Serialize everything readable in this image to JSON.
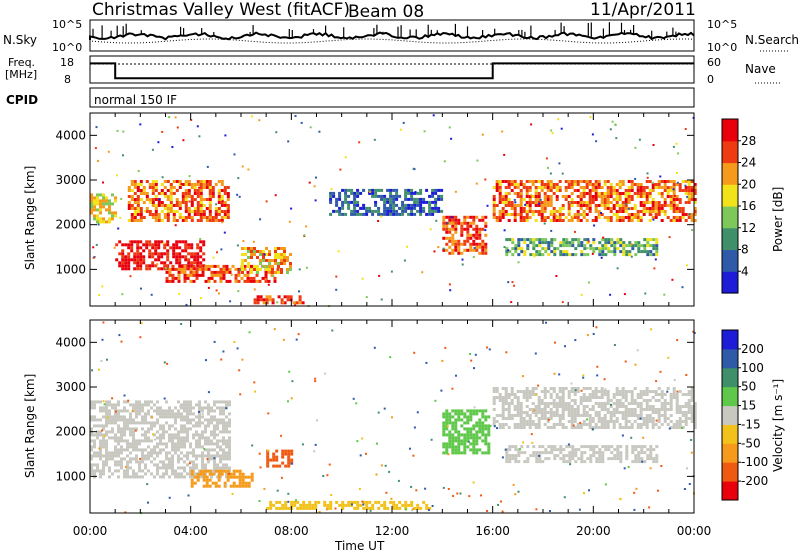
{
  "header": {
    "title": "Christmas Valley West (fitACF)",
    "beam": "Beam 08",
    "date": "11/Apr/2011"
  },
  "top_panels": {
    "nsky_label": "N.Sky",
    "nsky_ticks": [
      "10^5",
      "10^0"
    ],
    "nsearch_label": "N.Search",
    "nsearch_ticks": [
      "10^5",
      "10^0"
    ],
    "freq_label_1": "Freq.",
    "freq_label_2": "[MHz]",
    "freq_ticks": [
      "18",
      "8"
    ],
    "nave_label": "Nave",
    "nave_ticks": [
      "60",
      "0"
    ],
    "cpid_label": "CPID",
    "cpid_text": "normal 150 IF"
  },
  "chart_data": [
    {
      "type": "heatmap",
      "name": "power",
      "xlabel": "",
      "ylabel": "Slant Range [km]",
      "yticks": [
        "1000",
        "2000",
        "3000",
        "4000"
      ],
      "ylim": [
        180,
        4500
      ],
      "xlim": [
        0,
        24
      ],
      "colorbar_label": "Power [dB]",
      "colorbar_ticks": [
        "4",
        "8",
        "12",
        "16",
        "20",
        "24",
        "28"
      ],
      "colorbar_colors": [
        "#1d1dd8",
        "#2f5aa8",
        "#3f8f6a",
        "#7ec85a",
        "#f2e21a",
        "#f59a1a",
        "#ee3b12",
        "#e8000d"
      ],
      "echo_regions": [
        {
          "t0": 0.0,
          "t1": 1.0,
          "r0": 2050,
          "r1": 2700,
          "p": 18
        },
        {
          "t0": 1.0,
          "t1": 4.5,
          "r0": 1000,
          "r1": 1650,
          "p": 30
        },
        {
          "t0": 3.0,
          "t1": 7.5,
          "r0": 700,
          "r1": 1100,
          "p": 26
        },
        {
          "t0": 1.5,
          "t1": 5.5,
          "r0": 2100,
          "r1": 3000,
          "p": 24
        },
        {
          "t0": 6.0,
          "t1": 8.0,
          "r0": 900,
          "r1": 1500,
          "p": 20
        },
        {
          "t0": 6.5,
          "t1": 8.5,
          "r0": 250,
          "r1": 420,
          "p": 26
        },
        {
          "t0": 9.5,
          "t1": 14.0,
          "r0": 2200,
          "r1": 2800,
          "p": 6
        },
        {
          "t0": 14.0,
          "t1": 15.7,
          "r0": 1350,
          "r1": 2200,
          "p": 26
        },
        {
          "t0": 16.0,
          "t1": 24.0,
          "r0": 2100,
          "r1": 3000,
          "p": 24
        },
        {
          "t0": 16.5,
          "t1": 22.5,
          "r0": 1300,
          "r1": 1700,
          "p": 12
        }
      ]
    },
    {
      "type": "heatmap",
      "name": "velocity",
      "xlabel": "Time UT",
      "ylabel": "Slant Range [km]",
      "yticks": [
        "1000",
        "2000",
        "3000",
        "4000"
      ],
      "ylim": [
        180,
        4500
      ],
      "xlim": [
        0,
        24
      ],
      "xticks": [
        "00:00",
        "04:00",
        "08:00",
        "12:00",
        "16:00",
        "20:00",
        "00:00"
      ],
      "colorbar_label": "Velocity [m s⁻¹]",
      "colorbar_ticks": [
        "200",
        "100",
        "50",
        "15",
        "-15",
        "-50",
        "-100",
        "-200"
      ],
      "colorbar_colors": [
        "#1d1dd8",
        "#2f5aa8",
        "#3f8f6a",
        "#5fc84a",
        "#c8c8c0",
        "#f2c21a",
        "#f59a1a",
        "#ee5a12",
        "#e8000d"
      ],
      "echo_regions": [
        {
          "t0": 0.0,
          "t1": 5.5,
          "r0": 1000,
          "r1": 2700,
          "v": 0
        },
        {
          "t0": 4.0,
          "t1": 6.5,
          "r0": 750,
          "r1": 1150,
          "v": -60
        },
        {
          "t0": 7.0,
          "t1": 8.0,
          "r0": 1200,
          "r1": 1600,
          "v": -150
        },
        {
          "t0": 7.0,
          "t1": 13.5,
          "r0": 250,
          "r1": 450,
          "v": -40
        },
        {
          "t0": 14.0,
          "t1": 15.8,
          "r0": 1500,
          "r1": 2500,
          "v": 40
        },
        {
          "t0": 16.0,
          "t1": 24.0,
          "r0": 2100,
          "r1": 3000,
          "v": 0
        },
        {
          "t0": 16.5,
          "t1": 22.5,
          "r0": 1300,
          "r1": 1700,
          "v": 0
        }
      ]
    }
  ],
  "series_overview": {
    "freq_mhz": [
      {
        "t0": 0,
        "t1": 1.0,
        "v": 16
      },
      {
        "t0": 1.0,
        "t1": 16.0,
        "v": 10.5
      },
      {
        "t0": 16.0,
        "t1": 24.0,
        "v": 16
      }
    ],
    "nave_level": 52
  }
}
